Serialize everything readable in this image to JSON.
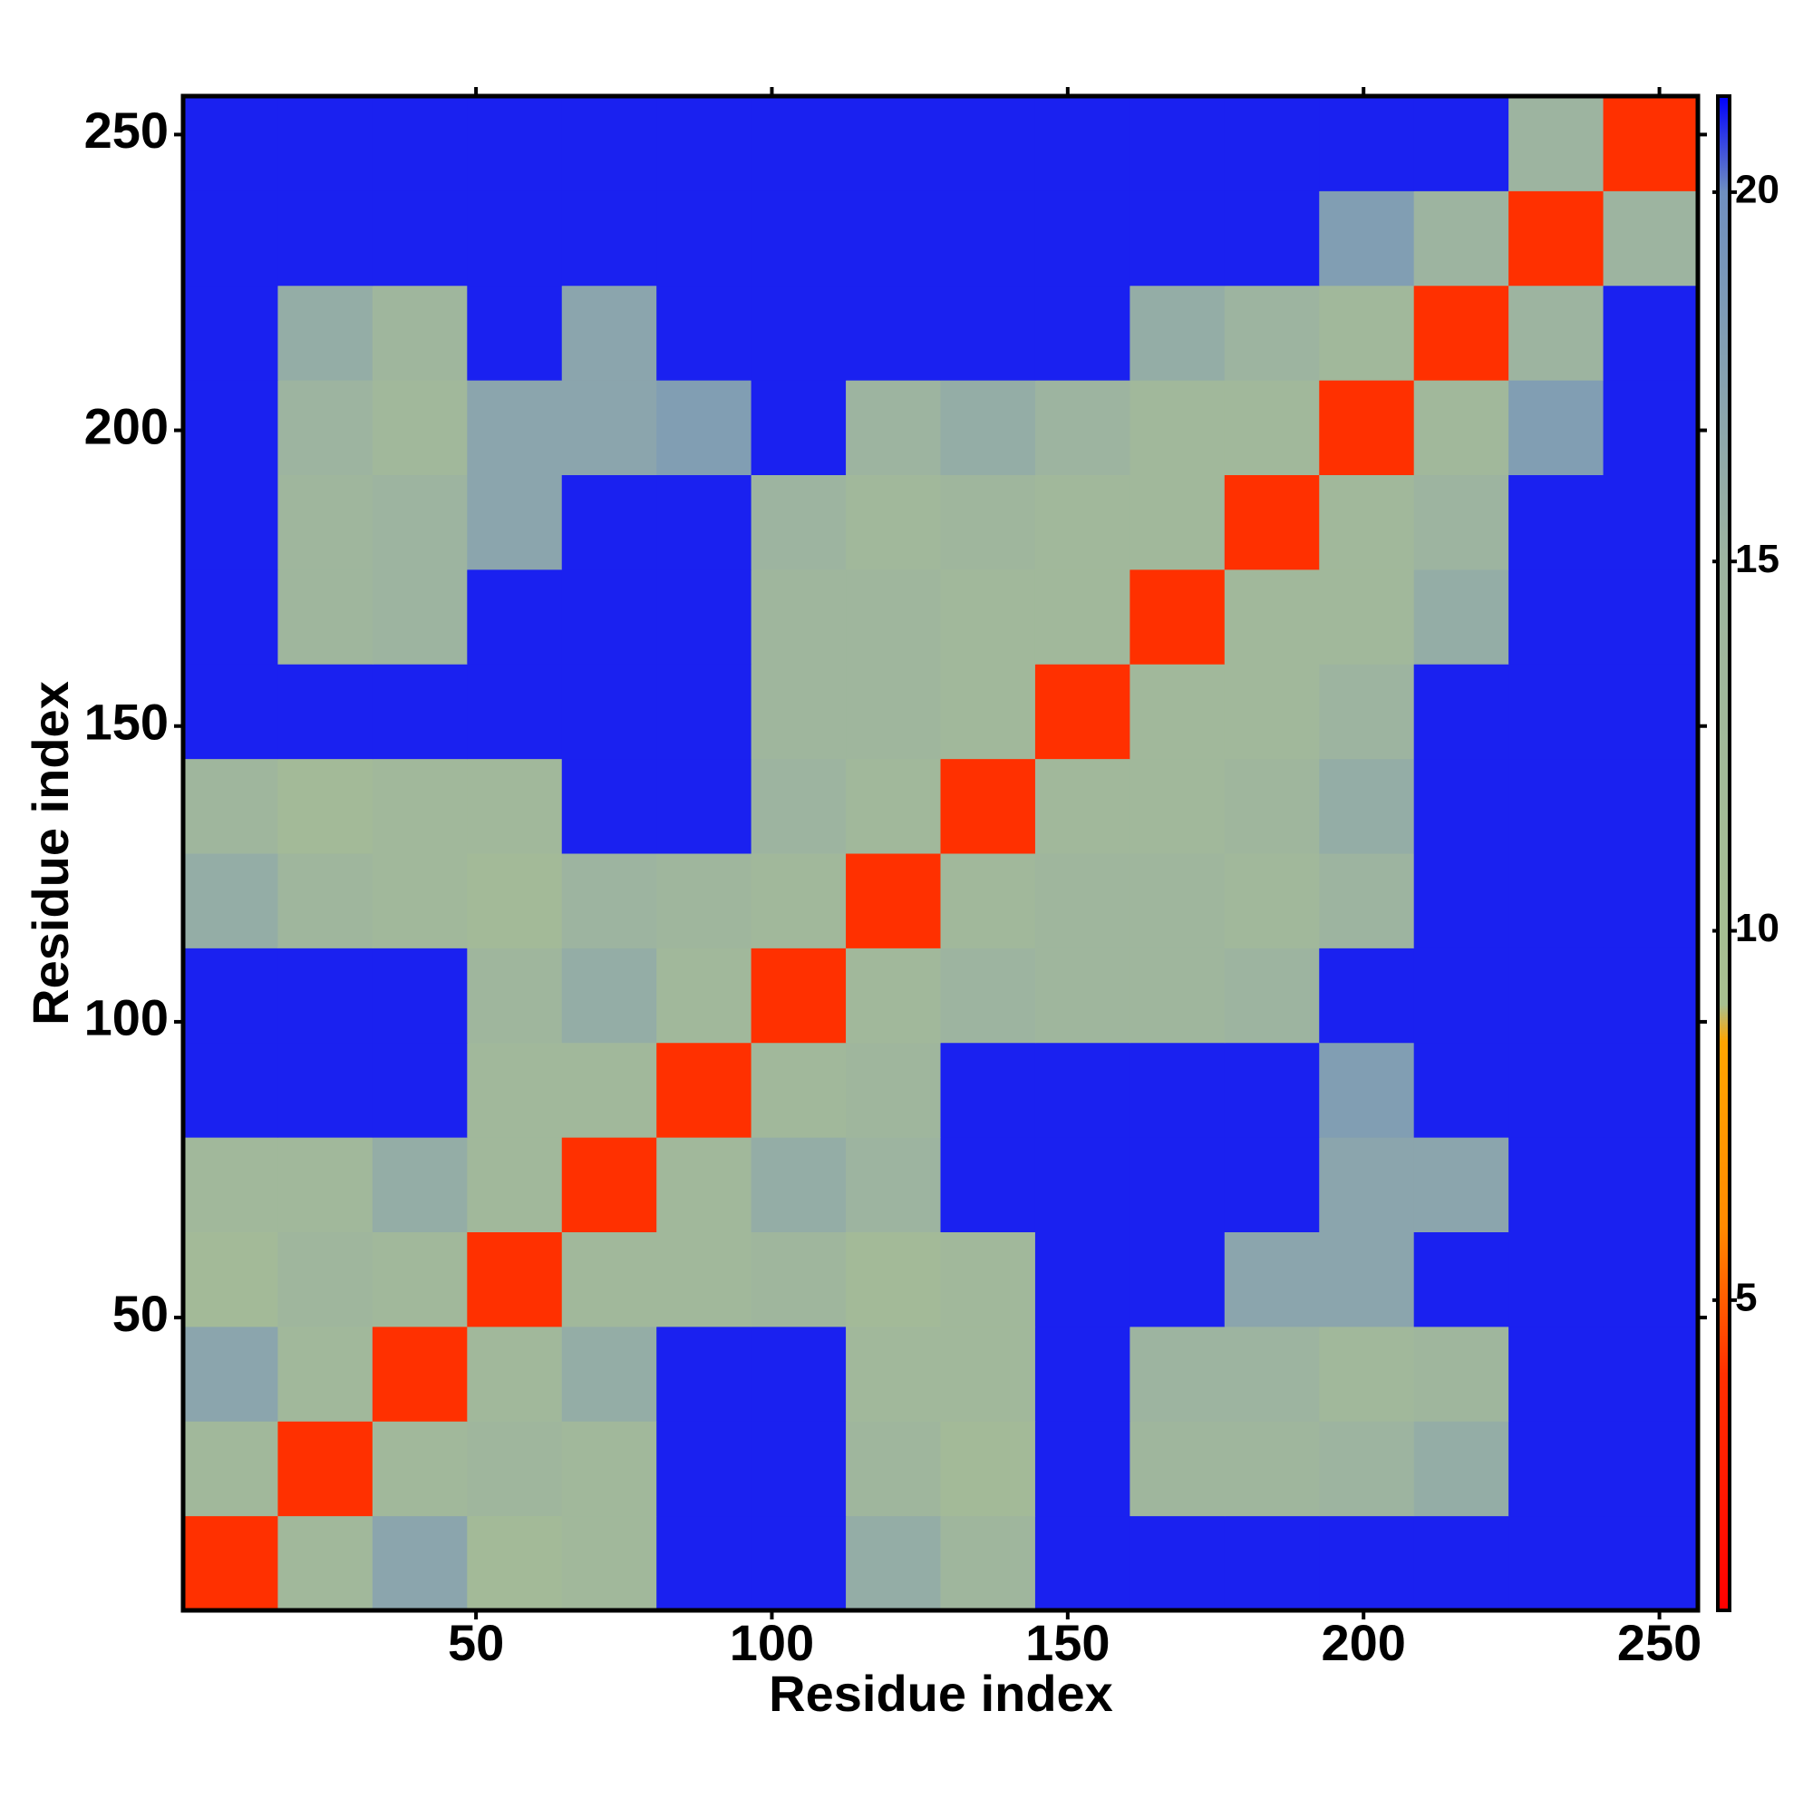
{
  "chart_data": {
    "type": "heatmap",
    "xlabel": "Residue index",
    "ylabel": "Residue index",
    "xlim": [
      0.5,
      256.5
    ],
    "ylim": [
      0.5,
      256.5
    ],
    "xticks": [
      50,
      100,
      150,
      200,
      250
    ],
    "yticks": [
      50,
      100,
      150,
      200,
      250
    ],
    "clim": [
      0.8,
      21.3
    ],
    "cticks": [
      5,
      10,
      15,
      20
    ],
    "color_stops": [
      {
        "value": 0.8,
        "color": "#ff0000"
      },
      {
        "value": 4,
        "color": "#ff3000"
      },
      {
        "value": 6,
        "color": "#ff8a00"
      },
      {
        "value": 8.5,
        "color": "#ffa500"
      },
      {
        "value": 9,
        "color": "#a8c090"
      },
      {
        "value": 15,
        "color": "#9db4a0"
      },
      {
        "value": 20,
        "color": "#6f8fc0"
      },
      {
        "value": 21.3,
        "color": "#0000ff"
      }
    ],
    "z": [
      [
        4,
        13,
        17,
        12,
        13,
        21,
        21,
        16,
        14,
        21,
        21,
        21,
        21,
        21,
        21,
        21
      ],
      [
        13,
        4,
        13,
        14,
        13,
        21,
        21,
        14,
        12,
        21,
        14,
        14,
        15,
        16,
        21,
        21
      ],
      [
        17,
        13,
        4,
        13,
        16,
        21,
        21,
        13,
        13,
        21,
        15,
        15,
        13,
        14,
        21,
        21
      ],
      [
        12,
        14,
        13,
        4,
        13,
        13,
        14,
        12,
        13,
        21,
        21,
        17,
        17,
        21,
        21,
        21
      ],
      [
        13,
        13,
        16,
        13,
        4,
        13,
        16,
        15,
        21,
        21,
        21,
        21,
        17,
        17,
        21,
        21
      ],
      [
        21,
        21,
        21,
        13,
        13,
        4,
        13,
        14,
        21,
        21,
        21,
        21,
        18,
        21,
        21,
        21
      ],
      [
        21,
        21,
        21,
        14,
        16,
        13,
        4,
        13,
        15,
        14,
        14,
        15,
        21,
        21,
        21,
        21
      ],
      [
        16,
        14,
        13,
        12,
        15,
        14,
        13,
        4,
        13,
        14,
        14,
        13,
        15,
        21,
        21,
        21
      ],
      [
        14,
        12,
        13,
        13,
        21,
        21,
        15,
        13,
        4,
        13,
        13,
        14,
        16,
        21,
        21,
        21
      ],
      [
        21,
        21,
        21,
        21,
        21,
        21,
        14,
        14,
        13,
        4,
        13,
        13,
        15,
        21,
        21,
        21
      ],
      [
        21,
        14,
        15,
        21,
        21,
        21,
        14,
        14,
        13,
        13,
        4,
        13,
        13,
        16,
        21,
        21
      ],
      [
        21,
        14,
        15,
        17,
        21,
        21,
        15,
        13,
        14,
        13,
        13,
        4,
        13,
        15,
        21,
        21
      ],
      [
        21,
        15,
        13,
        17,
        17,
        18,
        21,
        15,
        16,
        15,
        13,
        13,
        4,
        13,
        18,
        21
      ],
      [
        21,
        16,
        14,
        21,
        17,
        21,
        21,
        21,
        21,
        21,
        16,
        15,
        13,
        4,
        15,
        21
      ],
      [
        21,
        21,
        21,
        21,
        21,
        21,
        21,
        21,
        21,
        21,
        21,
        21,
        18,
        15,
        4,
        15
      ],
      [
        21,
        21,
        21,
        21,
        21,
        21,
        21,
        21,
        21,
        21,
        21,
        21,
        21,
        21,
        15,
        4
      ]
    ]
  }
}
